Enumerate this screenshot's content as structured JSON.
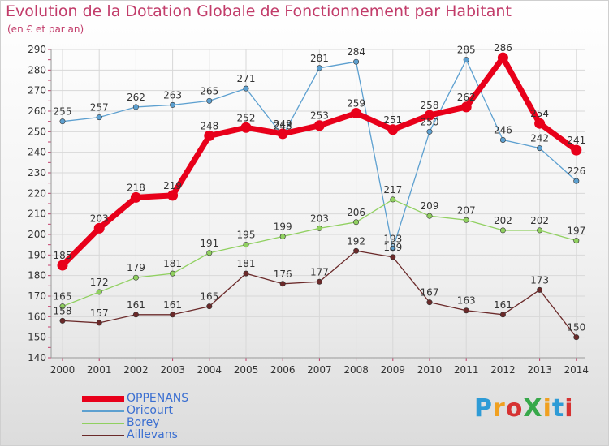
{
  "title": "Evolution de la Dotation Globale de Fonctionnement par Habitant",
  "subtitle": "(en € et par an)",
  "logo": {
    "text": "ProXiti",
    "letters": [
      "P",
      "r",
      "o",
      "X",
      "i",
      "t",
      "i"
    ],
    "colors": [
      "#2e9bd6",
      "#f0a020",
      "#d63333",
      "#37a84a",
      "#f0a020",
      "#2e9bd6",
      "#d63333"
    ]
  },
  "chart_data": {
    "type": "line",
    "title": "Evolution de la Dotation Globale de Fonctionnement par Habitant",
    "ylabel": "(en € et par an)",
    "xlabel": "",
    "categories": [
      "2000",
      "2001",
      "2002",
      "2003",
      "2004",
      "2005",
      "2006",
      "2007",
      "2008",
      "2009",
      "2010",
      "2011",
      "2012",
      "2013",
      "2014"
    ],
    "ylim": [
      140,
      290
    ],
    "yticks": [
      140,
      150,
      160,
      170,
      180,
      190,
      200,
      210,
      220,
      230,
      240,
      250,
      260,
      270,
      280,
      290
    ],
    "grid": true,
    "series": [
      {
        "name": "OPPENANS",
        "color": "#e8001a",
        "bold": true,
        "values": [
          185,
          203,
          218,
          219,
          248,
          252,
          249,
          253,
          259,
          251,
          258,
          262,
          286,
          254,
          241
        ]
      },
      {
        "name": "Oricourt",
        "color": "#5da0d0",
        "bold": false,
        "values": [
          255,
          257,
          262,
          263,
          265,
          271,
          248,
          281,
          284,
          193,
          250,
          285,
          246,
          242,
          226
        ]
      },
      {
        "name": "Borey",
        "color": "#90d060",
        "bold": false,
        "values": [
          165,
          172,
          179,
          181,
          191,
          195,
          199,
          203,
          206,
          217,
          209,
          207,
          202,
          202,
          197
        ]
      },
      {
        "name": "Aillevans",
        "color": "#6b2a2a",
        "bold": false,
        "values": [
          158,
          157,
          161,
          161,
          165,
          181,
          176,
          177,
          192,
          189,
          167,
          163,
          161,
          173,
          150
        ]
      }
    ]
  }
}
